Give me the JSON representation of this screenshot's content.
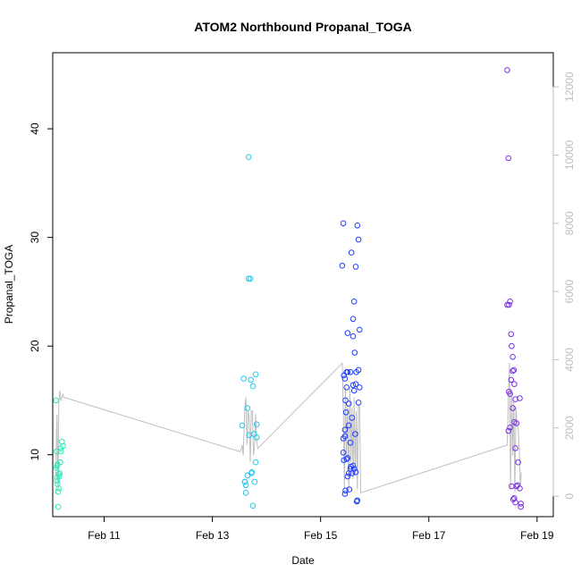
{
  "chart_data": {
    "type": "scatter",
    "title": "ATOM2 Northbound Propanal_TOGA",
    "xlabel": "Date",
    "ylabel": "Propanal_TOGA",
    "x_ticks": [
      "Feb 11",
      "Feb 13",
      "Feb 15",
      "Feb 17",
      "Feb 19"
    ],
    "y_ticks": [
      10,
      20,
      30,
      40
    ],
    "y2_ticks": [
      0,
      2000,
      4000,
      6000,
      8000,
      10000,
      12000
    ],
    "xlim": [
      10.05,
      19.3
    ],
    "ylim": [
      4.3,
      47.0
    ],
    "y2lim": [
      -600,
      13000
    ],
    "grid": false,
    "colors": {
      "points_feb10": "#2ee8b8",
      "points_feb13": "#22c8ee",
      "points_feb15": "#1f3cff",
      "points_feb18": "#7a2ee6",
      "secondary_line": "#bebebe",
      "secondary_axis": "#bebebe",
      "frame": "#000000"
    },
    "series": [
      {
        "x": [
          10.11,
          10.12,
          10.12,
          10.13,
          10.13,
          10.14,
          10.15,
          10.15,
          10.16,
          10.17,
          10.19,
          10.2,
          10.22,
          10.24,
          10.14,
          10.18,
          10.13,
          10.2,
          10.16
        ],
        "y": [
          15.0,
          10.3,
          8.8,
          9.0,
          7.6,
          7.3,
          6.6,
          5.2,
          8.2,
          8.0,
          9.3,
          10.3,
          11.2,
          10.8,
          9.1,
          8.3,
          7.9,
          10.6,
          6.9
        ],
        "color": "#2ee8b8"
      },
      {
        "x": [
          13.55,
          13.58,
          13.6,
          13.62,
          13.65,
          13.67,
          13.67,
          13.7,
          13.72,
          13.75,
          13.77,
          13.8,
          13.82,
          13.62,
          13.68,
          13.73,
          13.78,
          13.8,
          13.6,
          13.65,
          13.82,
          13.75,
          13.71
        ],
        "y": [
          12.7,
          17.0,
          7.5,
          7.2,
          14.3,
          37.4,
          26.2,
          26.2,
          8.3,
          16.3,
          11.9,
          17.4,
          12.8,
          6.5,
          11.8,
          8.4,
          7.5,
          9.3,
          7.5,
          8.1,
          11.6,
          5.3,
          16.9
        ],
        "color": "#22c8ee"
      },
      {
        "x": [
          15.4,
          15.42,
          15.43,
          15.45,
          15.46,
          15.47,
          15.48,
          15.5,
          15.52,
          15.55,
          15.57,
          15.6,
          15.62,
          15.63,
          15.65,
          15.68,
          15.7,
          15.72,
          15.42,
          15.45,
          15.48,
          15.5,
          15.55,
          15.58,
          15.6,
          15.62,
          15.65,
          15.7,
          15.43,
          15.46,
          15.52,
          15.56,
          15.6,
          15.64,
          15.67,
          15.68,
          15.7,
          15.45,
          15.5,
          15.52,
          15.58,
          15.62,
          15.48,
          15.55,
          15.42,
          15.45,
          15.6,
          15.66,
          15.5,
          15.53,
          15.65,
          15.72
        ],
        "y": [
          27.4,
          31.3,
          17.3,
          17.0,
          15.0,
          13.9,
          17.6,
          17.6,
          12.7,
          11.1,
          28.6,
          22.5,
          24.1,
          19.4,
          27.3,
          31.1,
          29.8,
          21.5,
          10.2,
          11.7,
          9.6,
          8.0,
          8.7,
          8.3,
          16.4,
          15.9,
          16.5,
          17.8,
          9.5,
          6.7,
          8.3,
          8.9,
          9.0,
          11.9,
          5.7,
          5.8,
          14.8,
          6.4,
          21.2,
          14.7,
          13.4,
          8.7,
          16.2,
          17.6,
          11.5,
          12.3,
          20.9,
          17.6,
          9.7,
          6.8,
          8.4,
          16.2
        ],
        "color": "#1f3cff"
      },
      {
        "x": [
          18.45,
          18.47,
          18.48,
          18.5,
          18.52,
          18.53,
          18.55,
          18.57,
          18.58,
          18.6,
          18.62,
          18.65,
          18.68,
          18.7,
          18.48,
          18.5,
          18.52,
          18.55,
          18.58,
          18.6,
          18.62,
          18.47,
          18.5,
          18.53,
          18.56,
          18.6,
          18.64,
          18.68,
          18.7,
          18.45,
          18.55,
          18.58
        ],
        "y": [
          45.4,
          37.3,
          23.8,
          24.1,
          21.1,
          20.0,
          19.0,
          17.8,
          16.5,
          15.1,
          12.9,
          9.3,
          6.9,
          5.5,
          15.8,
          15.6,
          16.9,
          14.3,
          13.0,
          10.6,
          7.1,
          12.2,
          12.5,
          7.1,
          5.9,
          5.6,
          7.2,
          15.2,
          5.2,
          23.8,
          17.7,
          6.0
        ],
        "color": "#7a2ee6"
      }
    ],
    "secondary_line": {
      "y_axis": "right",
      "x": [
        10.11,
        10.12,
        10.13,
        10.14,
        10.15,
        10.16,
        10.18,
        10.2,
        10.22,
        10.24,
        10.25,
        13.52,
        13.55,
        13.57,
        13.6,
        13.62,
        13.64,
        13.66,
        13.68,
        13.7,
        13.72,
        13.74,
        13.76,
        13.78,
        13.8,
        13.82,
        13.84,
        15.4,
        15.42,
        15.44,
        15.46,
        15.48,
        15.5,
        15.52,
        15.54,
        15.56,
        15.58,
        15.6,
        15.62,
        15.64,
        15.66,
        15.68,
        15.7,
        15.72,
        15.74,
        18.45,
        18.47,
        18.49,
        18.51,
        18.53,
        18.55,
        18.57,
        18.59,
        18.61,
        18.63,
        18.65,
        18.67,
        18.69,
        18.71
      ],
      "y": [
        600,
        1800,
        2400,
        1100,
        200,
        2700,
        3100,
        2800,
        2900,
        3000,
        2900,
        1300,
        1500,
        1200,
        2600,
        2900,
        1500,
        2500,
        2300,
        1000,
        2500,
        2500,
        1200,
        1500,
        2400,
        1600,
        1400,
        3900,
        2500,
        200,
        3200,
        1100,
        2700,
        200,
        3200,
        1000,
        2600,
        500,
        2900,
        600,
        2500,
        200,
        2700,
        2600,
        100,
        1500,
        2900,
        3900,
        200,
        3100,
        1200,
        2800,
        100,
        2600,
        2100,
        2000,
        1400,
        300,
        700
      ]
    }
  }
}
